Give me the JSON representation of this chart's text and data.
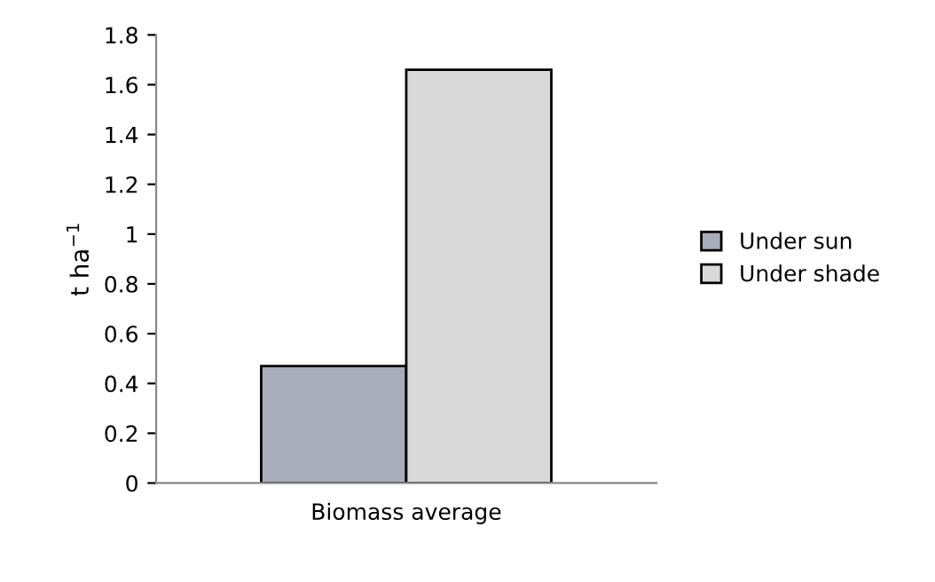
{
  "chart_data": {
    "type": "bar",
    "categories": [
      "Biomass average"
    ],
    "series": [
      {
        "name": "Under sun",
        "color": "#a9adb9",
        "values": [
          0.47
        ]
      },
      {
        "name": "Under shade",
        "color": "#d9d9d9",
        "values": [
          1.66
        ]
      }
    ],
    "ylabel": "t ha$^{−1}$",
    "ylim": [
      0,
      1.8
    ],
    "yticks": [
      0,
      0.2,
      0.4,
      0.6,
      0.8,
      1,
      1.2,
      1.4,
      1.6,
      1.8
    ],
    "grid": false,
    "legend": "right"
  }
}
